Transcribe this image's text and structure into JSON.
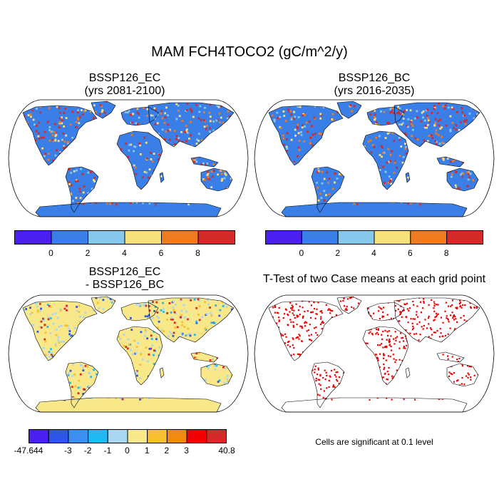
{
  "title": "MAM FCH4TOCO2 (gC/m^2/y)",
  "panels": [
    {
      "title_line1": "BSSP126_EC",
      "title_line2": "(yrs 2081-2100)",
      "kind": "field"
    },
    {
      "title_line1": "BSSP126_BC",
      "title_line2": "(yrs 2016-2035)",
      "kind": "field"
    },
    {
      "title_line1": "BSSP126_EC",
      "title_line2": "- BSSP126_BC",
      "kind": "difference"
    },
    {
      "title_line1": "T-Test of two Case means at each grid point",
      "title_line2": "",
      "kind": "ttest"
    }
  ],
  "colorbar_top": {
    "colors": [
      "#4a1ff0",
      "#3a7ee8",
      "#86c8ec",
      "#f8e07a",
      "#f07a20",
      "#d42a2a"
    ],
    "labels": [
      "0",
      "2",
      "4",
      "6",
      "8"
    ]
  },
  "colorbar_diff": {
    "colors": [
      "#4a1ff0",
      "#2e55e6",
      "#3a8ff0",
      "#22b8f4",
      "#a9d6f0",
      "#f8e88a",
      "#f8c030",
      "#f08a10",
      "#f40000",
      "#d42a2a"
    ],
    "labels": [
      "-47.644",
      "-3",
      "-2",
      "-1",
      "0",
      "1",
      "2",
      "3",
      "40.8"
    ]
  },
  "ttest_note": "Cells are significant at 0.1 level",
  "palette": {
    "ocean": "#ffffff",
    "land_base": "#3a7ee8",
    "diff_base": "#f8e88a",
    "signif": "#ee0000"
  }
}
